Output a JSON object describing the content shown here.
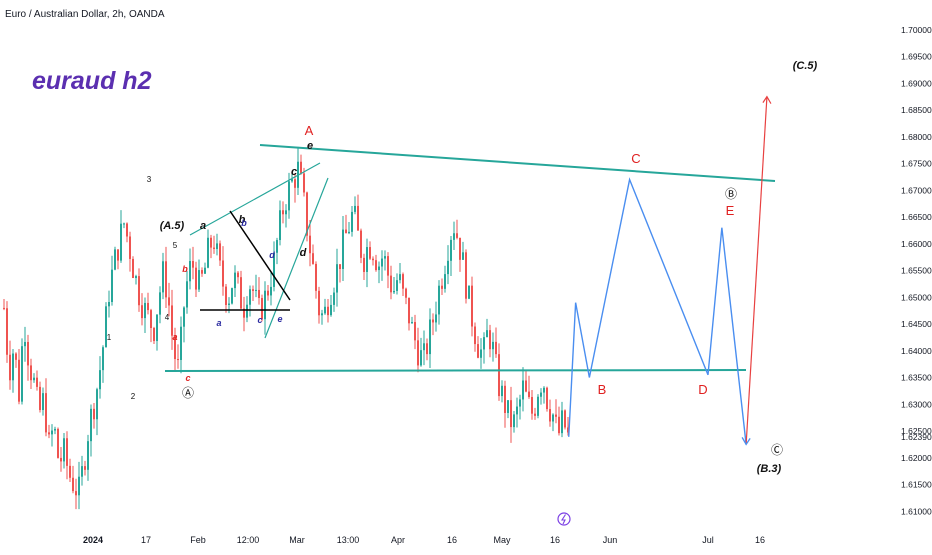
{
  "header": {
    "symbol_title": "Euro / Australian Dollar, 2h, OANDA"
  },
  "watermark": {
    "text": "euraud h2",
    "color": "#5b2fb0"
  },
  "colors": {
    "candle_up": "#26a69a",
    "candle_down": "#ef5350",
    "trendline": "#26a69a",
    "triangle_line": "#000000",
    "projection_down": "#4a8ef0",
    "projection_up": "#e84040",
    "label_red": "#e02020",
    "label_blue": "#2a2aa0"
  },
  "chart_data": {
    "type": "candlestick",
    "symbol": "EUR/AUD",
    "timeframe": "2h",
    "source": "OANDA",
    "ylim": [
      1.605,
      1.705
    ],
    "y_ticks": [
      1.61,
      1.615,
      1.62,
      1.625,
      1.63,
      1.635,
      1.64,
      1.645,
      1.65,
      1.655,
      1.66,
      1.665,
      1.67,
      1.675,
      1.68,
      1.685,
      1.69,
      1.695,
      1.7
    ],
    "y_tick_labels": [
      "1.61000",
      "1.61500",
      "1.62000",
      "1.62500",
      "1.63000",
      "1.63500",
      "1.64000",
      "1.64500",
      "1.65000",
      "1.65500",
      "1.66000",
      "1.66500",
      "1.67000",
      "1.67500",
      "1.68000",
      "1.68500",
      "1.69000",
      "1.69500",
      "1.70000"
    ],
    "last_price_label": "1.62390",
    "last_price": 1.6239,
    "x_ticks": [
      {
        "label": "2024",
        "bold": true
      },
      {
        "label": "17"
      },
      {
        "label": "Feb"
      },
      {
        "label": "12:00"
      },
      {
        "label": "Mar"
      },
      {
        "label": "13:00"
      },
      {
        "label": "Apr"
      },
      {
        "label": "16"
      },
      {
        "label": "May"
      },
      {
        "label": "16"
      },
      {
        "label": "Jun"
      },
      {
        "label": "Jul"
      },
      {
        "label": "16"
      }
    ],
    "price_path": [
      [
        1.648,
        1.636,
        1.641,
        1.632,
        1.646,
        1.638
      ],
      [
        1.634,
        1.628,
        1.631,
        1.622,
        1.626,
        1.619
      ],
      [
        1.621,
        1.617,
        1.615,
        1.6135,
        1.619,
        1.626
      ],
      [
        1.63,
        1.635,
        1.642,
        1.651,
        1.656,
        1.66
      ],
      [
        1.664,
        1.66,
        1.655,
        1.651,
        1.648,
        1.646
      ],
      [
        1.644,
        1.65,
        1.655,
        1.649,
        1.64,
        1.636
      ],
      [
        1.648,
        1.655,
        1.656,
        1.652,
        1.654,
        1.659
      ],
      [
        1.661,
        1.656,
        1.652,
        1.65,
        1.654,
        1.651
      ],
      [
        1.648,
        1.653,
        1.651,
        1.647,
        1.649,
        1.652
      ],
      [
        1.656,
        1.662,
        1.667,
        1.67,
        1.672,
        1.674
      ],
      [
        1.668,
        1.661,
        1.655,
        1.648,
        1.646,
        1.65
      ],
      [
        1.653,
        1.656,
        1.66,
        1.663,
        1.666,
        1.661
      ],
      [
        1.657,
        1.66,
        1.659,
        1.656,
        1.658,
        1.654
      ],
      [
        1.651,
        1.654,
        1.65,
        1.647,
        1.643,
        1.64
      ],
      [
        1.638,
        1.642,
        1.646,
        1.651,
        1.655,
        1.66
      ],
      [
        1.664,
        1.661,
        1.656,
        1.65,
        1.645,
        1.641
      ],
      [
        1.639,
        1.644,
        1.64,
        1.634,
        1.631,
        1.628
      ],
      [
        1.626,
        1.629,
        1.633,
        1.63,
        1.628,
        1.633
      ],
      [
        1.635,
        1.63,
        1.628,
        1.624,
        1.627,
        1.6239
      ]
    ],
    "projection_blue": [
      {
        "date": "2024-05-20",
        "price": 1.6239
      },
      {
        "date": "2024-05-22",
        "price": 1.649
      },
      {
        "date": "2024-05-26",
        "price": 1.635
      },
      {
        "date": "2024-06-07",
        "price": 1.672
      },
      {
        "date": "2024-07-01",
        "price": 1.6355
      },
      {
        "date": "2024-07-05",
        "price": 1.663
      },
      {
        "date": "2024-07-12",
        "price": 1.6225
      }
    ],
    "projection_red": [
      {
        "date": "2024-07-12",
        "price": 1.6225
      },
      {
        "date": "2024-07-18",
        "price": 1.6875
      }
    ],
    "wave_labels": [
      {
        "text": "(C.5)",
        "style": "black-italic"
      },
      {
        "text": "(B.3)",
        "style": "black-italic"
      },
      {
        "text": "(A.5)",
        "style": "black-italic"
      },
      {
        "text": "A",
        "style": "red"
      },
      {
        "text": "B",
        "style": "red"
      },
      {
        "text": "C",
        "style": "red"
      },
      {
        "text": "D",
        "style": "red"
      },
      {
        "text": "E",
        "style": "red"
      },
      {
        "text": "Ⓐ",
        "style": "circled"
      },
      {
        "text": "Ⓑ",
        "style": "circled"
      },
      {
        "text": "Ⓒ",
        "style": "circled"
      },
      {
        "text": "1",
        "style": "black-small"
      },
      {
        "text": "2",
        "style": "black-small"
      },
      {
        "text": "3",
        "style": "black-small"
      },
      {
        "text": "4",
        "style": "black-small"
      },
      {
        "text": "5",
        "style": "black-small"
      },
      {
        "text": "a",
        "style": "black-italic"
      },
      {
        "text": "b",
        "style": "black-italic"
      },
      {
        "text": "c",
        "style": "black-italic"
      },
      {
        "text": "d",
        "style": "black-italic"
      },
      {
        "text": "e",
        "style": "black-italic"
      },
      {
        "text": "a",
        "style": "red-small"
      },
      {
        "text": "b",
        "style": "red-small"
      },
      {
        "text": "c",
        "style": "red-small"
      },
      {
        "text": "a",
        "style": "blue-small"
      },
      {
        "text": "b",
        "style": "blue-small"
      },
      {
        "text": "c",
        "style": "blue-small"
      },
      {
        "text": "d",
        "style": "blue-small"
      },
      {
        "text": "e",
        "style": "blue-small"
      }
    ]
  }
}
